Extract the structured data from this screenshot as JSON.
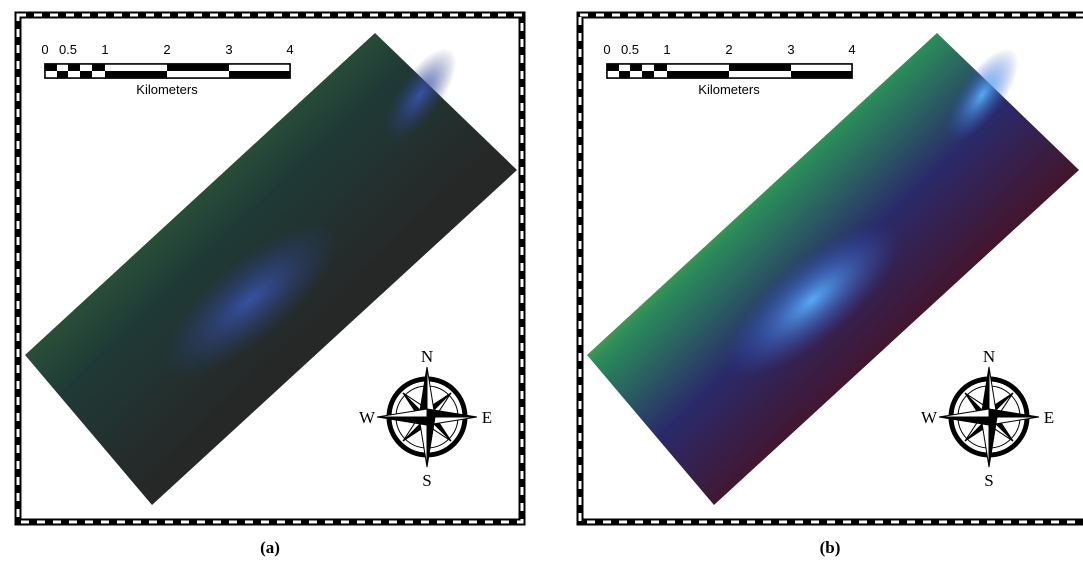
{
  "panels": [
    {
      "caption": "(a)",
      "scale_bar": {
        "labels": [
          "0",
          "0.5",
          "1",
          "2",
          "3",
          "4"
        ],
        "unit": "Kilometers"
      },
      "compass": {
        "north": "N",
        "east": "E",
        "south": "S",
        "west": "W"
      }
    },
    {
      "caption": "(b)",
      "scale_bar": {
        "labels": [
          "0",
          "0.5",
          "1",
          "2",
          "3",
          "4"
        ],
        "unit": "Kilometers"
      },
      "compass": {
        "north": "N",
        "east": "E",
        "south": "S",
        "west": "W"
      }
    }
  ]
}
